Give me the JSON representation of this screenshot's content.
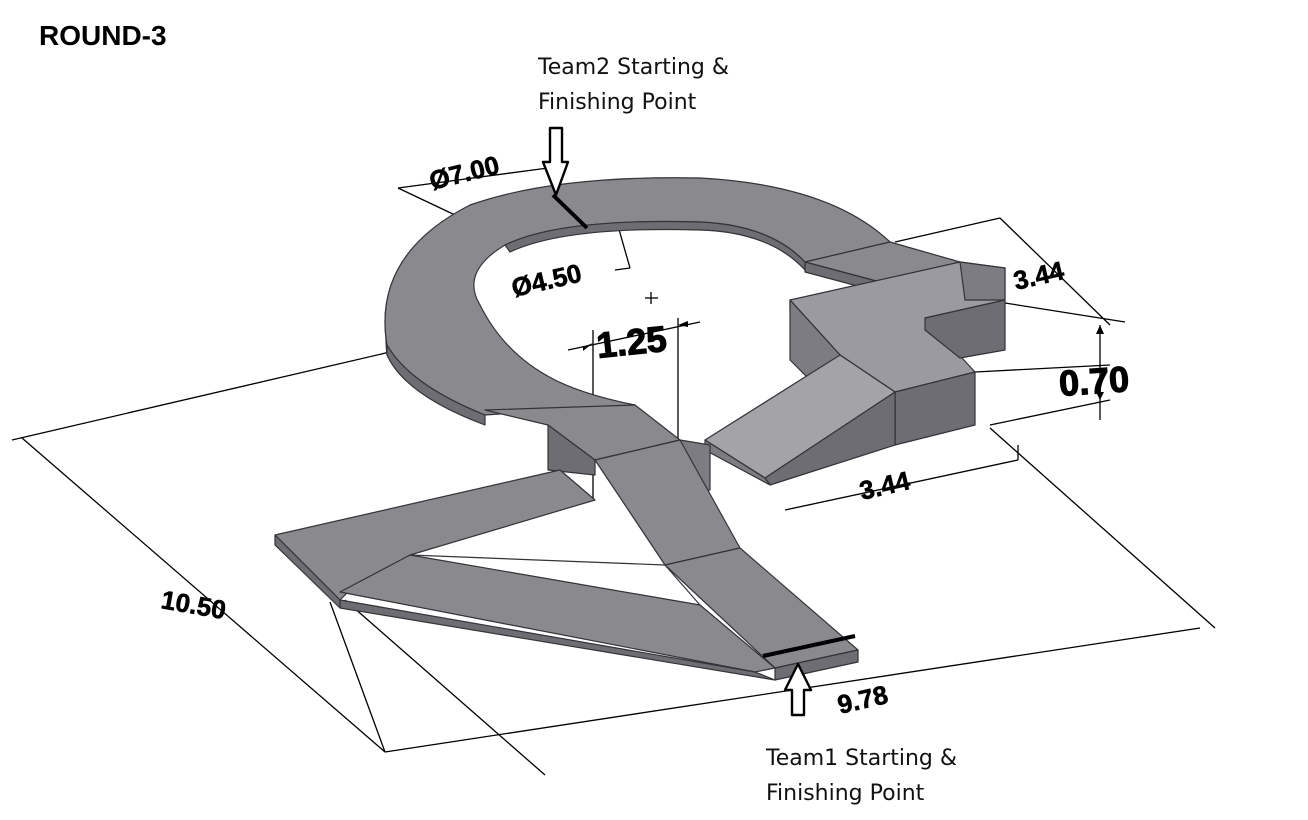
{
  "title": "ROUND-3",
  "team2_label": {
    "line1": "Team2 Starting &",
    "line2": "Finishing Point"
  },
  "team1_label": {
    "line1": "Team1 Starting &",
    "line2": "Finishing Point"
  },
  "dimensions": {
    "outer_diameter": "Ø7.00",
    "inner_diameter": "Ø4.50",
    "track_width": "1.25",
    "block_length": "3.44",
    "block_height": "0.70",
    "block_width": "3.44",
    "overall_length": "10.50",
    "overall_width": "9.78"
  },
  "colors": {
    "top_face": "#8a8a8e",
    "side_face": "#6d6d73",
    "light_face": "#a4a4a8",
    "edge": "#333338"
  }
}
